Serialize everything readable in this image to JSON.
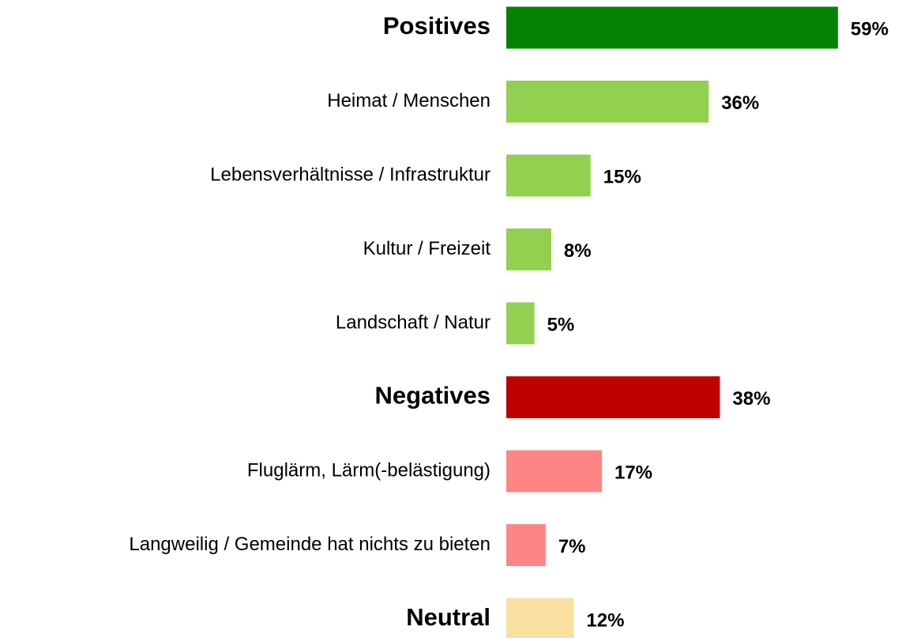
{
  "chart_data": {
    "type": "hbar",
    "categories": [
      "Positives",
      "Heimat / Menschen",
      "Lebensverhältnisse / Infrastruktur",
      "Kultur /  Freizeit",
      "Landschaft / Natur",
      "Negatives",
      "Fluglärm, Lärm(-belästigung)",
      "Langweilig / Gemeinde hat nichts zu bieten",
      "Neutral"
    ],
    "values": [
      59,
      36,
      15,
      8,
      5,
      38,
      17,
      7,
      12
    ],
    "value_labels": [
      "59%",
      "36%",
      "15%",
      "8%",
      "5%",
      "38%",
      "17%",
      "7%",
      "12%"
    ],
    "colors": [
      "#038203",
      "#92d050",
      "#92d050",
      "#92d050",
      "#92d050",
      "#c00000",
      "#ff8585",
      "#ff8585",
      "#f9e0a0"
    ],
    "emphasis": [
      true,
      false,
      false,
      false,
      false,
      true,
      false,
      false,
      true
    ],
    "xlim": [
      0,
      60
    ]
  }
}
